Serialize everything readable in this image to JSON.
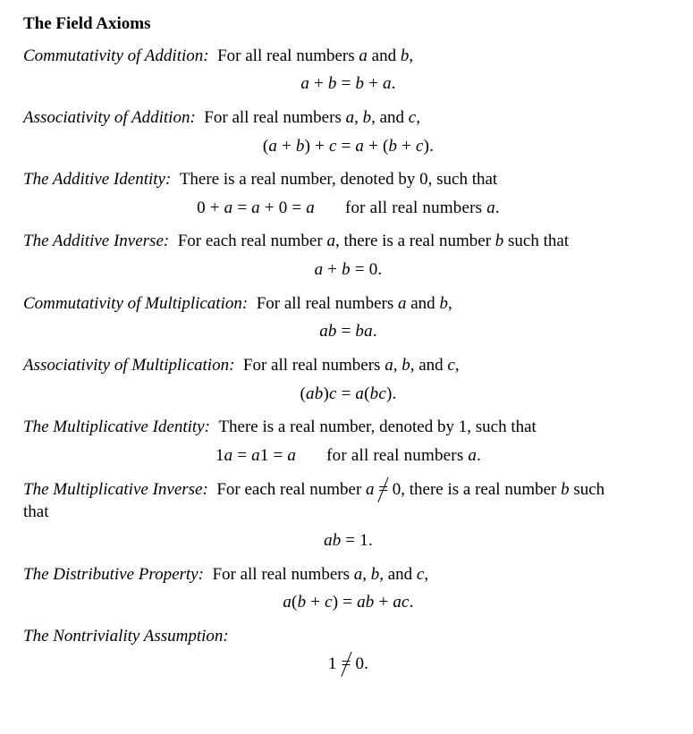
{
  "title": "The Field Axioms",
  "axioms": {
    "commAdd": {
      "name": "Commutativity of Addition:",
      "desc": "For all real numbers",
      "vars": "a",
      "conj": "and",
      "vars2": "b",
      "eqL": "a",
      "eqPlus1": "+",
      "eqB": "b",
      "eqEq": "=",
      "eqB2": "b",
      "eqPlus2": "+",
      "eqA2": "a",
      "eqDot": "."
    },
    "assocAdd": {
      "name": "Associativity of Addition:",
      "desc": "For all real numbers",
      "vars": "a, b,",
      "conj": "and",
      "vars2": "c",
      "eq": "(a + b) + c = a + (b + c)."
    },
    "addId": {
      "name": "The Additive Identity:",
      "desc": "There is a real number, denoted by 0, such that",
      "eqLine": "0 + a = a + 0 = a",
      "qual": "for all real numbers",
      "qualVar": "a",
      "qualDot": "."
    },
    "addInv": {
      "name": "The Additive Inverse:",
      "desc1": "For each real number",
      "var1": "a",
      "desc2": ", there is a real number",
      "var2": "b",
      "desc3": "such that",
      "eq": "a + b = 0."
    },
    "commMul": {
      "name": "Commutativity of Multiplication:",
      "desc": "For all real numbers",
      "vars": "a",
      "conj": "and",
      "vars2": "b",
      "eq": "ab = ba."
    },
    "assocMul": {
      "name": "Associativity of Multiplication:",
      "desc": "For all real numbers",
      "vars": "a, b,",
      "conj": "and",
      "vars2": "c",
      "eq": "(ab)c = a(bc)."
    },
    "mulId": {
      "name": "The Multiplicative Identity:",
      "desc": "There is a real number, denoted by 1, such that",
      "eqLine": "1a = a1 = a",
      "qual": "for all real numbers",
      "qualVar": "a",
      "qualDot": "."
    },
    "mulInv": {
      "name": "The Multiplicative Inverse:",
      "desc1": "For each real number",
      "var1": "a",
      "neq": "≠",
      "zero": "0, there is a real number",
      "var2": "b",
      "desc3": "such",
      "that": "that",
      "eq": "ab = 1."
    },
    "dist": {
      "name": "The Distributive Property:",
      "desc": "For all real numbers",
      "vars": "a, b,",
      "conj": "and",
      "vars2": "c",
      "eq": "a(b + c) = ab + ac."
    },
    "nontrivial": {
      "name": "The Nontriviality Assumption:",
      "one": "1",
      "neq": "=",
      "zero": "0."
    }
  }
}
